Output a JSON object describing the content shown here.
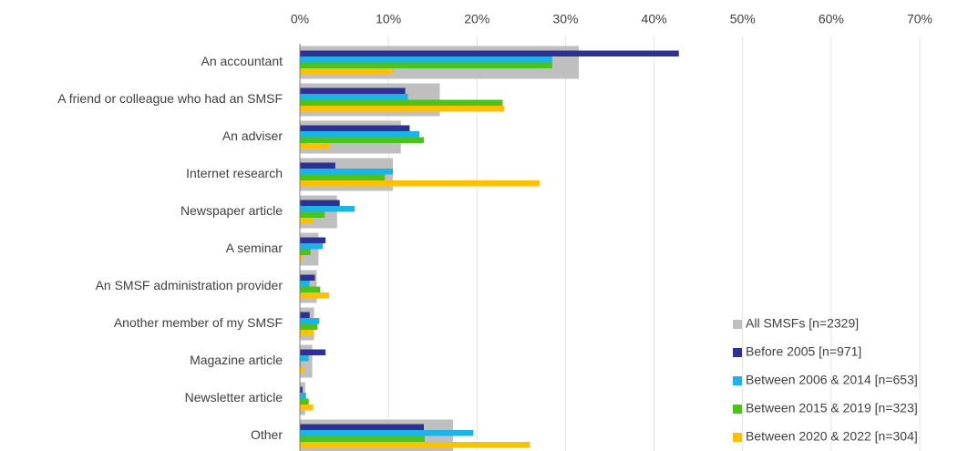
{
  "chart_data": {
    "type": "bar",
    "orientation": "horizontal",
    "overlay": "All SMSFs [n=2329]",
    "categories": [
      "An accountant",
      "A friend or colleague who had an SMSF",
      "An adviser",
      "Internet research",
      "Newspaper article",
      "A seminar",
      "An SMSF administration provider",
      "Another member of my SMSF",
      "Magazine article",
      "Newsletter article",
      "Other"
    ],
    "series": [
      {
        "name": "All SMSFs [n=2329]",
        "color": "#bfbfbf",
        "values": [
          31.5,
          15.8,
          11.4,
          10.5,
          4.2,
          2.1,
          1.9,
          1.6,
          1.4,
          0.6,
          17.3
        ]
      },
      {
        "name": "Before 2005 [n=971]",
        "color": "#2e3192",
        "values": [
          42.8,
          11.9,
          12.4,
          4.0,
          4.5,
          2.9,
          1.7,
          1.1,
          2.9,
          0.3,
          14.0
        ]
      },
      {
        "name": "Between 2006 & 2014 [n=653]",
        "color": "#1bb4e8",
        "values": [
          28.5,
          12.2,
          13.5,
          10.5,
          6.2,
          2.6,
          1.1,
          2.2,
          1.0,
          0.7,
          19.6
        ]
      },
      {
        "name": "Between 2015 & 2019 [n=323]",
        "color": "#4cc31b",
        "values": [
          28.5,
          22.9,
          14.0,
          9.6,
          2.8,
          1.2,
          2.3,
          2.0,
          0.1,
          1.0,
          14.1
        ]
      },
      {
        "name": "Between 2020 & 2022 [n=304]",
        "color": "#ffc000",
        "values": [
          10.5,
          23.1,
          3.4,
          27.1,
          1.5,
          0.3,
          3.3,
          1.6,
          0.5,
          1.5,
          26.0
        ]
      }
    ],
    "xlim": [
      0,
      70
    ],
    "xticks": [
      {
        "value": 0,
        "label": "0%"
      },
      {
        "value": 10,
        "label": "10%"
      },
      {
        "value": 20,
        "label": "20%"
      },
      {
        "value": 30,
        "label": "30%"
      },
      {
        "value": 40,
        "label": "40%"
      },
      {
        "value": 50,
        "label": "50%"
      },
      {
        "value": 60,
        "label": "60%"
      },
      {
        "value": 70,
        "label": "70%"
      }
    ],
    "grid": true,
    "legend": "bottom-right"
  }
}
